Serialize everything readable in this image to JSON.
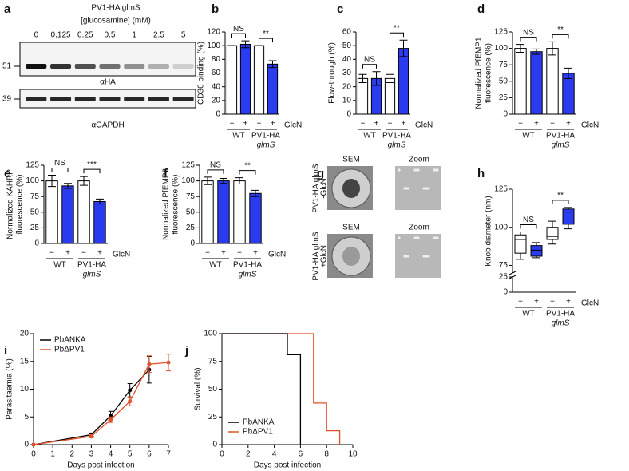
{
  "blot": {
    "panel": "a",
    "title": "PV1-HA glmS",
    "subtitle": "[glucosamine] (mM)",
    "lanes": [
      "0",
      "0.125",
      "0.25",
      "0.5",
      "1",
      "2.5",
      "5"
    ],
    "blots": [
      {
        "marker": "51",
        "label": "αHA"
      },
      {
        "marker": "39",
        "label": "αGAPDH"
      }
    ]
  },
  "sem": {
    "panel": "g",
    "rows": [
      {
        "label": [
          "PV1-HA glmS",
          "-GlcN"
        ],
        "columns": [
          "SEM",
          "Zoom"
        ]
      },
      {
        "label": [
          "PV1-HA glmS",
          "+GlcN"
        ],
        "columns": [
          "SEM",
          "Zoom"
        ]
      }
    ]
  },
  "chart_data": [
    {
      "type": "bar",
      "panel": "b",
      "ylabel": [
        "CD36 binding (%)"
      ],
      "categories": [
        "−",
        "+",
        "−",
        "+"
      ],
      "groups": [
        [
          "WT"
        ],
        [
          "PV1-HA",
          "glmS"
        ]
      ],
      "xlabel": "GlcN",
      "values": [
        100,
        102,
        100,
        73
      ],
      "errors": [
        0,
        5,
        0,
        5
      ],
      "colors": [
        "#ffffff",
        "#2b3cf0",
        "#ffffff",
        "#2b3cf0"
      ],
      "ylim": [
        0,
        120
      ],
      "yticks": [
        0,
        20,
        40,
        60,
        80,
        100,
        120
      ],
      "annotations": [
        "NS",
        "**"
      ]
    },
    {
      "type": "bar",
      "panel": "c",
      "ylabel": [
        "Flow-through (%)"
      ],
      "categories": [
        "−",
        "+",
        "−",
        "+"
      ],
      "groups": [
        [
          "WT"
        ],
        [
          "PV1-HA",
          "glmS"
        ]
      ],
      "xlabel": "GlcN",
      "values": [
        26,
        26,
        26,
        48
      ],
      "errors": [
        3,
        5,
        3,
        6
      ],
      "colors": [
        "#ffffff",
        "#2b3cf0",
        "#ffffff",
        "#2b3cf0"
      ],
      "ylim": [
        0,
        60
      ],
      "yticks": [
        0,
        10,
        20,
        30,
        40,
        50,
        60
      ],
      "annotations": [
        "NS",
        "**"
      ]
    },
    {
      "type": "bar",
      "panel": "d",
      "ylabel": [
        "Normalized PfEMP1",
        "fluorescence (%)"
      ],
      "categories": [
        "−",
        "+",
        "−",
        "+"
      ],
      "groups": [
        [
          "WT"
        ],
        [
          "PV1-HA",
          "glmS"
        ]
      ],
      "xlabel": "GlcN",
      "values": [
        100,
        95,
        100,
        62
      ],
      "errors": [
        6,
        4,
        10,
        8
      ],
      "colors": [
        "#ffffff",
        "#2b3cf0",
        "#ffffff",
        "#2b3cf0"
      ],
      "ylim": [
        0,
        125
      ],
      "yticks": [
        0,
        25,
        50,
        75,
        100,
        125
      ],
      "annotations": [
        "NS",
        "**"
      ]
    },
    {
      "type": "bar",
      "panel": "e",
      "ylabel": [
        "Normalized KAHRP",
        "fluorescence (%)"
      ],
      "categories": [
        "−",
        "+",
        "−",
        "+"
      ],
      "groups": [
        [
          "WT"
        ],
        [
          "PV1-HA",
          "glmS"
        ]
      ],
      "xlabel": "GlcN",
      "values": [
        100,
        92,
        100,
        67
      ],
      "errors": [
        9,
        4,
        7,
        4
      ],
      "colors": [
        "#ffffff",
        "#2b3cf0",
        "#ffffff",
        "#2b3cf0"
      ],
      "ylim": [
        0,
        125
      ],
      "yticks": [
        0,
        25,
        50,
        75,
        100,
        125
      ],
      "annotations": [
        "NS",
        "***"
      ]
    },
    {
      "type": "bar",
      "panel": "f",
      "ylabel": [
        "Normalized PfEMP3",
        "fluorescence (%)"
      ],
      "categories": [
        "−",
        "+",
        "−",
        "+"
      ],
      "groups": [
        [
          "WT"
        ],
        [
          "PV1-HA",
          "glmS"
        ]
      ],
      "xlabel": "GlcN",
      "values": [
        100,
        100,
        100,
        80
      ],
      "errors": [
        6,
        4,
        5,
        5
      ],
      "colors": [
        "#ffffff",
        "#2b3cf0",
        "#ffffff",
        "#2b3cf0"
      ],
      "ylim": [
        0,
        125
      ],
      "yticks": [
        0,
        25,
        50,
        75,
        100,
        125
      ],
      "annotations": [
        "NS",
        "**"
      ]
    },
    {
      "type": "box",
      "panel": "h",
      "ylabel": [
        "Knob diameter (nm)"
      ],
      "categories": [
        "−",
        "+",
        "−",
        "+"
      ],
      "groups": [
        [
          "WT"
        ],
        [
          "PV1-HA",
          "glmS"
        ]
      ],
      "xlabel": "GlcN",
      "boxes": [
        {
          "min": 79,
          "q1": 83,
          "median": 92,
          "q3": 95,
          "max": 97
        },
        {
          "min": 80,
          "q1": 81,
          "median": 85,
          "q3": 88,
          "max": 90
        },
        {
          "min": 89,
          "q1": 92,
          "median": 94,
          "q3": 100,
          "max": 104
        },
        {
          "min": 99,
          "q1": 102,
          "median": 110,
          "q3": 112,
          "max": 113
        }
      ],
      "colors": [
        "#ffffff",
        "#2b3cf0",
        "#ffffff",
        "#2b3cf0"
      ],
      "ylim": [
        70,
        125
      ],
      "yticks": [
        75,
        100,
        125
      ],
      "ylim_lower": [
        0,
        25
      ],
      "yticks_lower": [
        0,
        25
      ],
      "annotations": [
        "NS",
        "**"
      ]
    },
    {
      "type": "line",
      "panel": "i",
      "xlabel": "Days post infection",
      "ylabel": [
        "Parasitaemia (%)"
      ],
      "xlim": [
        0,
        7
      ],
      "xticks": [
        0,
        1,
        2,
        3,
        4,
        5,
        6,
        7
      ],
      "ylim": [
        0,
        20
      ],
      "yticks": [
        0,
        5,
        10,
        15,
        20
      ],
      "legend": "upper left",
      "series": [
        {
          "name": "PbANKA",
          "color": "#000000",
          "x": [
            0,
            3,
            4,
            5,
            6
          ],
          "values": [
            0,
            1.8,
            5.2,
            9.8,
            13.5
          ],
          "errors": [
            0,
            0.3,
            0.8,
            1.2,
            2.4
          ]
        },
        {
          "name": "PbΔPV1",
          "color": "#e0502a",
          "x": [
            0,
            3,
            4,
            5,
            6,
            7
          ],
          "values": [
            0,
            1.5,
            4.5,
            7.8,
            14.5,
            14.8
          ],
          "errors": [
            0,
            0.3,
            0.5,
            0.8,
            1.5,
            1.5
          ]
        }
      ]
    },
    {
      "type": "step",
      "panel": "j",
      "xlabel": "Days post infection",
      "ylabel": [
        "Survival (%)"
      ],
      "xlim": [
        0,
        10
      ],
      "xticks": [
        0,
        2,
        4,
        6,
        8,
        10
      ],
      "ylim": [
        0,
        100
      ],
      "yticks": [
        0,
        25,
        50,
        75,
        100
      ],
      "legend": "lower left",
      "series": [
        {
          "name": "PbANKA",
          "color": "#000000",
          "x": [
            0,
            5,
            6
          ],
          "values": [
            100,
            81,
            0
          ]
        },
        {
          "name": "PbΔPV1",
          "color": "#e0502a",
          "x": [
            0,
            7,
            8,
            9
          ],
          "values": [
            100,
            37.5,
            12.5,
            0
          ]
        }
      ]
    }
  ]
}
